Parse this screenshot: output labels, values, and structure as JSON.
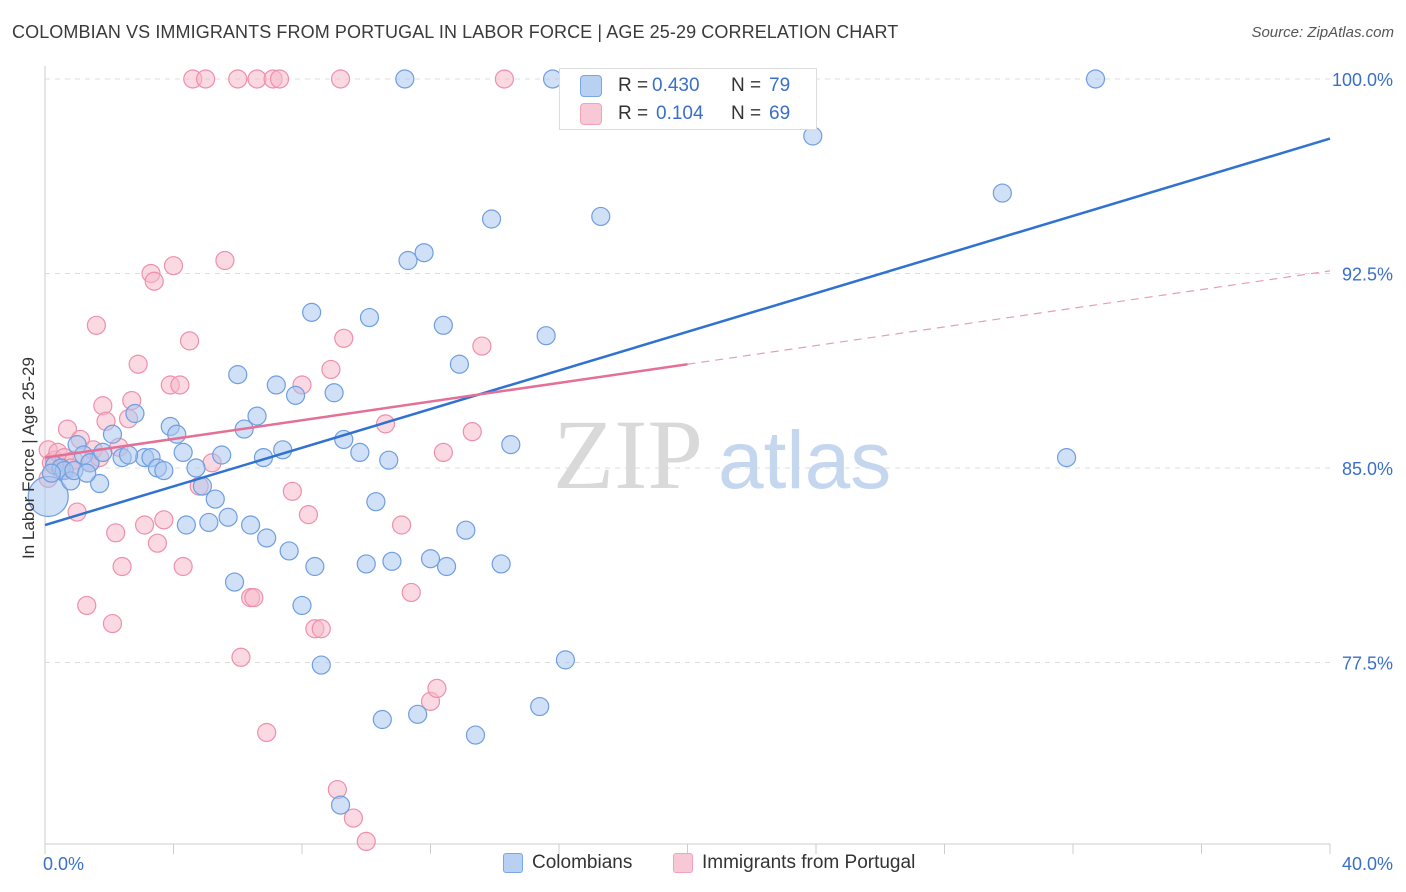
{
  "title": "COLOMBIAN VS IMMIGRANTS FROM PORTUGAL IN LABOR FORCE | AGE 25-29 CORRELATION CHART",
  "source": "Source: ZipAtlas.com",
  "watermark": {
    "zip": "ZIP",
    "atlas": "atlas"
  },
  "stats": {
    "row1": {
      "r_label": "R = ",
      "r_value": "0.430",
      "n_label": "N = ",
      "n_value": "79"
    },
    "row2": {
      "r_label": "R = ",
      "r_value": "0.104",
      "n_label": "N = ",
      "n_value": "69"
    }
  },
  "legend": {
    "series1": "Colombians",
    "series2": "Immigrants from Portugal"
  },
  "colors": {
    "blue_fill": "#a9c6ee",
    "blue_stroke": "#6f9ee0",
    "blue_line": "#2f72d0",
    "pink_fill": "#f6b9cb",
    "pink_stroke": "#ee8fac",
    "pink_line": "#e46f97",
    "tick_label": "#3a6fc8",
    "grid": "#dddddd"
  },
  "chart_data": {
    "type": "scatter",
    "title": "COLOMBIAN VS IMMIGRANTS FROM PORTUGAL IN LABOR FORCE | AGE 25-29 CORRELATION CHART",
    "xlabel": "",
    "ylabel": "In Labor Force | Age 25-29",
    "xlim": [
      0,
      40
    ],
    "ylim": [
      70.5,
      100.5
    ],
    "x_tick_labels": [
      "0.0%",
      "40.0%"
    ],
    "y_ticks": [
      77.5,
      85.0,
      92.5,
      100.0
    ],
    "y_tick_labels": [
      "77.5%",
      "85.0%",
      "92.5%",
      "100.0%"
    ],
    "grid": true,
    "legend_position": "bottom",
    "series": [
      {
        "name": "Colombians",
        "r": 0.43,
        "n": 79,
        "trend": {
          "x": [
            0,
            40
          ],
          "y": [
            82.8,
            97.7
          ]
        },
        "points": [
          [
            0.1,
            83.9
          ],
          [
            0.3,
            85.1
          ],
          [
            0.5,
            85.0
          ],
          [
            0.6,
            84.9
          ],
          [
            0.8,
            84.5
          ],
          [
            1.0,
            85.9
          ],
          [
            1.2,
            85.5
          ],
          [
            1.4,
            85.2
          ],
          [
            1.7,
            84.4
          ],
          [
            1.8,
            85.6
          ],
          [
            2.1,
            86.3
          ],
          [
            2.4,
            85.4
          ],
          [
            2.8,
            87.1
          ],
          [
            3.1,
            85.4
          ],
          [
            3.3,
            85.4
          ],
          [
            3.5,
            85.0
          ],
          [
            3.7,
            84.9
          ],
          [
            3.9,
            86.6
          ],
          [
            4.1,
            86.3
          ],
          [
            4.3,
            85.6
          ],
          [
            4.4,
            82.8
          ],
          [
            4.7,
            85.0
          ],
          [
            4.9,
            84.3
          ],
          [
            5.1,
            82.9
          ],
          [
            5.3,
            83.8
          ],
          [
            5.5,
            85.5
          ],
          [
            5.7,
            83.1
          ],
          [
            5.9,
            80.6
          ],
          [
            6.0,
            88.6
          ],
          [
            6.2,
            86.5
          ],
          [
            6.4,
            82.8
          ],
          [
            6.6,
            87.0
          ],
          [
            6.8,
            85.4
          ],
          [
            6.9,
            82.3
          ],
          [
            7.2,
            88.2
          ],
          [
            7.4,
            85.7
          ],
          [
            7.6,
            81.8
          ],
          [
            7.8,
            87.8
          ],
          [
            8.0,
            79.7
          ],
          [
            8.3,
            91.0
          ],
          [
            8.4,
            81.2
          ],
          [
            8.6,
            77.4
          ],
          [
            9.0,
            87.9
          ],
          [
            9.2,
            72.0
          ],
          [
            9.3,
            86.1
          ],
          [
            9.8,
            85.6
          ],
          [
            10.0,
            81.3
          ],
          [
            10.1,
            90.8
          ],
          [
            10.3,
            83.7
          ],
          [
            10.5,
            75.3
          ],
          [
            10.7,
            85.3
          ],
          [
            10.8,
            81.4
          ],
          [
            11.2,
            100.0
          ],
          [
            11.3,
            93.0
          ],
          [
            11.6,
            75.5
          ],
          [
            11.8,
            93.3
          ],
          [
            12.0,
            81.5
          ],
          [
            12.4,
            90.5
          ],
          [
            12.5,
            81.2
          ],
          [
            12.9,
            89.0
          ],
          [
            13.1,
            82.6
          ],
          [
            13.4,
            74.7
          ],
          [
            13.9,
            94.6
          ],
          [
            14.2,
            81.3
          ],
          [
            14.5,
            85.9
          ],
          [
            15.4,
            75.8
          ],
          [
            15.6,
            90.1
          ],
          [
            15.8,
            100.0
          ],
          [
            16.2,
            77.6
          ],
          [
            17.3,
            94.7
          ],
          [
            17.7,
            100.0
          ],
          [
            23.9,
            97.8
          ],
          [
            29.8,
            95.6
          ],
          [
            31.8,
            85.4
          ],
          [
            32.7,
            100.0
          ],
          [
            0.2,
            84.8
          ],
          [
            0.9,
            84.9
          ],
          [
            1.3,
            84.8
          ],
          [
            2.6,
            85.5
          ]
        ]
      },
      {
        "name": "Immigrants from Portugal",
        "r": 0.104,
        "n": 69,
        "trend": {
          "x": [
            0,
            20
          ],
          "y": [
            85.4,
            89.0
          ]
        },
        "trend_dashed": {
          "x": [
            20,
            40
          ],
          "y": [
            89.0,
            92.6
          ]
        },
        "points": [
          [
            0.1,
            85.7
          ],
          [
            0.2,
            85.2
          ],
          [
            0.3,
            85.3
          ],
          [
            0.4,
            85.6
          ],
          [
            0.5,
            84.9
          ],
          [
            0.6,
            85.4
          ],
          [
            0.7,
            86.5
          ],
          [
            0.9,
            85.3
          ],
          [
            1.0,
            83.3
          ],
          [
            1.1,
            86.1
          ],
          [
            1.3,
            79.7
          ],
          [
            1.4,
            85.2
          ],
          [
            1.5,
            85.7
          ],
          [
            1.6,
            90.5
          ],
          [
            1.8,
            87.4
          ],
          [
            1.9,
            86.8
          ],
          [
            2.1,
            79.0
          ],
          [
            2.2,
            82.5
          ],
          [
            2.3,
            85.8
          ],
          [
            2.4,
            81.2
          ],
          [
            2.6,
            86.9
          ],
          [
            2.7,
            87.6
          ],
          [
            2.9,
            89.0
          ],
          [
            3.1,
            82.8
          ],
          [
            3.3,
            92.5
          ],
          [
            3.4,
            92.2
          ],
          [
            3.5,
            82.1
          ],
          [
            3.7,
            83.0
          ],
          [
            3.9,
            88.2
          ],
          [
            4.0,
            92.8
          ],
          [
            4.2,
            88.2
          ],
          [
            4.3,
            81.2
          ],
          [
            4.5,
            89.9
          ],
          [
            4.6,
            100.0
          ],
          [
            4.8,
            84.3
          ],
          [
            5.0,
            100.0
          ],
          [
            5.2,
            85.2
          ],
          [
            5.6,
            93.0
          ],
          [
            6.0,
            100.0
          ],
          [
            6.1,
            77.7
          ],
          [
            6.4,
            80.0
          ],
          [
            6.6,
            100.0
          ],
          [
            6.9,
            74.8
          ],
          [
            7.1,
            100.0
          ],
          [
            7.3,
            100.0
          ],
          [
            7.7,
            84.1
          ],
          [
            8.0,
            88.2
          ],
          [
            8.2,
            83.2
          ],
          [
            8.4,
            78.8
          ],
          [
            8.6,
            78.8
          ],
          [
            8.9,
            88.8
          ],
          [
            9.1,
            72.6
          ],
          [
            9.3,
            90.0
          ],
          [
            9.6,
            71.5
          ],
          [
            10.0,
            70.6
          ],
          [
            10.6,
            86.7
          ],
          [
            11.1,
            82.8
          ],
          [
            11.4,
            80.2
          ],
          [
            12.0,
            76.0
          ],
          [
            12.2,
            76.5
          ],
          [
            12.4,
            85.6
          ],
          [
            13.3,
            86.4
          ],
          [
            13.6,
            89.7
          ],
          [
            14.3,
            100.0
          ],
          [
            0.1,
            84.6
          ],
          [
            0.8,
            85.0
          ],
          [
            6.5,
            80.0
          ],
          [
            9.2,
            100.0
          ],
          [
            1.7,
            85.4
          ]
        ]
      }
    ]
  }
}
